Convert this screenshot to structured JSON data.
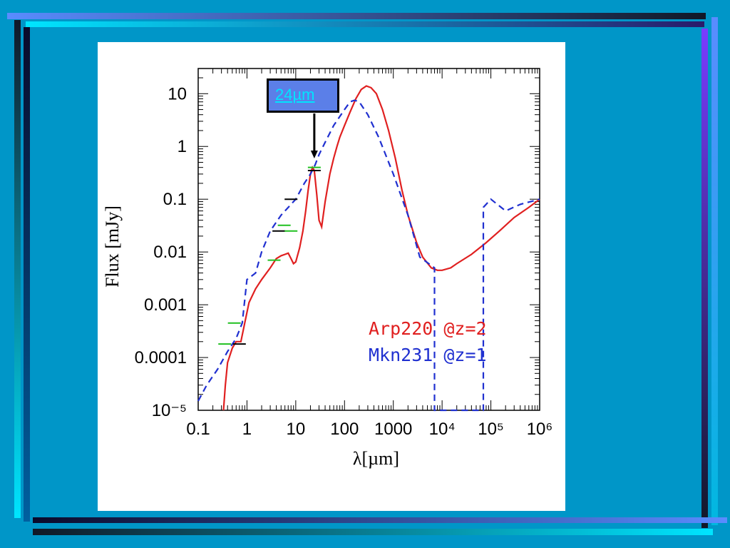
{
  "slide": {
    "background": "#0096c8",
    "callout": {
      "label": "24µm",
      "color": "#00e5ff",
      "fill": "#5b7fe8"
    }
  },
  "chart_data": {
    "type": "line",
    "title": "",
    "xlabel": "λ[µm]",
    "ylabel": "Flux [mJy]",
    "x_scale": "log",
    "y_scale": "log",
    "xlim": [
      0.1,
      1000000
    ],
    "ylim": [
      1e-05,
      30
    ],
    "x_tick_labels": [
      "0.1",
      "1",
      "10",
      "100",
      "1000",
      "10⁴",
      "10⁵",
      "10⁶"
    ],
    "x_tick_values": [
      0.1,
      1,
      10,
      100,
      1000,
      10000,
      100000,
      1000000
    ],
    "y_tick_labels": [
      "10",
      "1",
      "0.1",
      "0.01",
      "0.001",
      "0.0001",
      "10⁻⁵"
    ],
    "y_tick_values": [
      10,
      1,
      0.1,
      0.01,
      0.001,
      0.0001,
      1e-05
    ],
    "series": [
      {
        "name": "Arp220 @z=2",
        "color": "#e02020",
        "style": "solid",
        "x": [
          0.33,
          0.36,
          0.4,
          0.5,
          0.6,
          0.75,
          0.9,
          1.1,
          1.5,
          2,
          3,
          4,
          5,
          6,
          7,
          8,
          9,
          10,
          12,
          14,
          16,
          18,
          20,
          22,
          24,
          27,
          30,
          34,
          40,
          50,
          60,
          70,
          80,
          100,
          130,
          170,
          220,
          280,
          350,
          450,
          600,
          800,
          1100,
          1500,
          2000,
          3000,
          4000,
          6000,
          8000,
          10000,
          15000,
          20000,
          40000,
          80000,
          150000,
          300000,
          600000,
          1000000
        ],
        "y": [
          1e-05,
          3e-05,
          8e-05,
          0.00015,
          0.0002,
          0.0002,
          0.00045,
          0.0011,
          0.002,
          0.003,
          0.005,
          0.0075,
          0.0085,
          0.009,
          0.0095,
          0.0075,
          0.006,
          0.0065,
          0.012,
          0.025,
          0.06,
          0.15,
          0.3,
          0.4,
          0.35,
          0.12,
          0.04,
          0.03,
          0.09,
          0.3,
          0.6,
          1.0,
          1.5,
          2.5,
          4.5,
          8,
          12,
          14,
          13,
          10,
          5,
          2,
          0.6,
          0.15,
          0.05,
          0.015,
          0.008,
          0.005,
          0.0045,
          0.0045,
          0.005,
          0.006,
          0.009,
          0.015,
          0.025,
          0.045,
          0.07,
          0.1
        ]
      },
      {
        "name": "Mkn231 @z=1",
        "color": "#2030d0",
        "style": "dashed",
        "x": [
          0.1,
          0.15,
          0.25,
          0.4,
          0.6,
          0.8,
          1,
          1.5,
          2,
          3,
          5,
          8,
          10,
          15,
          20,
          25,
          30,
          40,
          60,
          100,
          130,
          160,
          200,
          300,
          500,
          1000,
          2000,
          3500,
          7000,
          7000,
          7000,
          70000,
          70000,
          70000,
          100000,
          200000,
          400000,
          1000000
        ],
        "y": [
          1.5e-05,
          3e-05,
          6e-05,
          0.00013,
          0.00023,
          0.00045,
          0.003,
          0.004,
          0.01,
          0.025,
          0.05,
          0.08,
          0.1,
          0.2,
          0.3,
          0.45,
          0.7,
          1.2,
          2.5,
          5,
          7,
          7.5,
          7,
          4,
          1.5,
          0.3,
          0.05,
          0.008,
          0.005,
          0.005,
          1e-05,
          1e-05,
          0.02,
          0.07,
          0.1,
          0.06,
          0.08,
          0.1
        ]
      }
    ],
    "photometry": [
      {
        "x": 0.35,
        "y": 0.00018,
        "color": "#20c020"
      },
      {
        "x": 0.55,
        "y": 0.00045,
        "color": "#20c020"
      },
      {
        "x": 0.7,
        "y": 0.00018,
        "color": "#000000"
      },
      {
        "x": 3.6,
        "y": 0.007,
        "color": "#20c020"
      },
      {
        "x": 4.5,
        "y": 0.025,
        "color": "#000000"
      },
      {
        "x": 5.8,
        "y": 0.032,
        "color": "#20c020"
      },
      {
        "x": 8,
        "y": 0.025,
        "color": "#20c020"
      },
      {
        "x": 8,
        "y": 0.1,
        "color": "#000000"
      },
      {
        "x": 24,
        "y": 0.4,
        "color": "#20c020"
      },
      {
        "x": 24,
        "y": 0.35,
        "color": "#000000"
      }
    ],
    "legend_placement": "lower-right",
    "grid": false
  }
}
